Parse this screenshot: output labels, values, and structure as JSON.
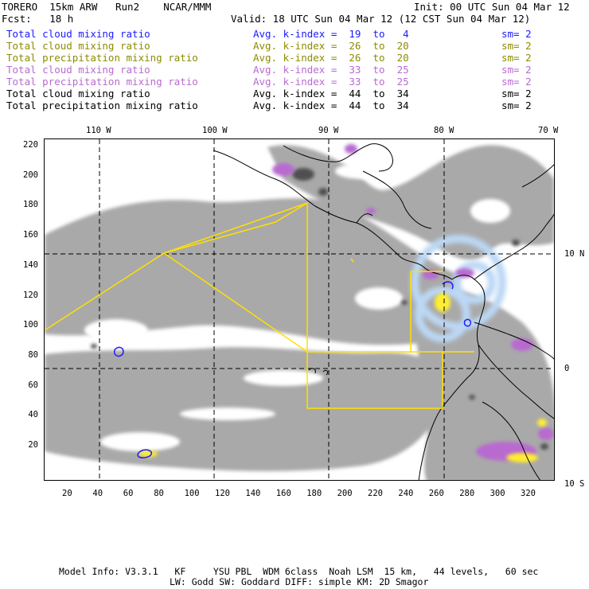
{
  "header": {
    "line1_left": "TORERO  15km ARW   Run2    NCAR/MMM",
    "line1_right": "Init: 00 UTC Sun 04 Mar 12",
    "line2_left": "Fcst:   18 h",
    "line2_right": "Valid: 18 UTC Sun 04 Mar 12 (12 CST Sun 04 Mar 12)"
  },
  "legend_rows": [
    {
      "field": "Total cloud mixing ratio",
      "kindex": "Avg. k-index =  19  to   4",
      "sm": "sm= 2",
      "color": "#1a1aff"
    },
    {
      "field": "Total cloud mixing ratio",
      "kindex": "Avg. k-index =  26  to  20",
      "sm": "sm= 2",
      "color": "#8c8c00"
    },
    {
      "field": "Total precipitation mixing ratio",
      "kindex": "Avg. k-index =  26  to  20",
      "sm": "sm= 2",
      "color": "#8c8c00"
    },
    {
      "field": "Total cloud mixing ratio",
      "kindex": "Avg. k-index =  33  to  25",
      "sm": "sm= 2",
      "color": "#b86bd0"
    },
    {
      "field": "Total precipitation mixing ratio",
      "kindex": "Avg. k-index =  33  to  25",
      "sm": "sm= 2",
      "color": "#b86bd0"
    },
    {
      "field": "Total cloud mixing ratio",
      "kindex": "Avg. k-index =  44  to  34",
      "sm": "sm= 2",
      "color": "#000000"
    },
    {
      "field": "Total precipitation mixing ratio",
      "kindex": "Avg. k-index =  44  to  34",
      "sm": "sm= 2",
      "color": "#000000"
    }
  ],
  "axes": {
    "top_lon_labels": [
      "110 W",
      "100 W",
      "90 W",
      "80 W",
      "70 W"
    ],
    "right_lat_labels": [
      "10 N",
      "0",
      "10 S"
    ],
    "left_y_ticks": [
      "220",
      "200",
      "180",
      "160",
      "140",
      "120",
      "100",
      "80",
      "60",
      "40",
      "20"
    ],
    "bottom_x_ticks": [
      "20",
      "40",
      "60",
      "80",
      "100",
      "120",
      "140",
      "160",
      "180",
      "200",
      "220",
      "240",
      "260",
      "280",
      "300",
      "320"
    ]
  },
  "footer": {
    "line1": "Model Info: V3.3.1   KF     YSU PBL  WDM 6class  Noah LSM  15 km,   44 levels,   60 sec",
    "line2": "LW: Godd SW: Goddard DIFF: simple KM: 2D Smagor"
  },
  "colors": {
    "cloud_gray": "#a9a9a9",
    "dark_gray": "#505050",
    "purple": "#b86bd0",
    "yellow": "#ffee33",
    "blue": "#1a1aff",
    "light_blue": "#bcd8f5",
    "box_lines": "#ffe000"
  }
}
